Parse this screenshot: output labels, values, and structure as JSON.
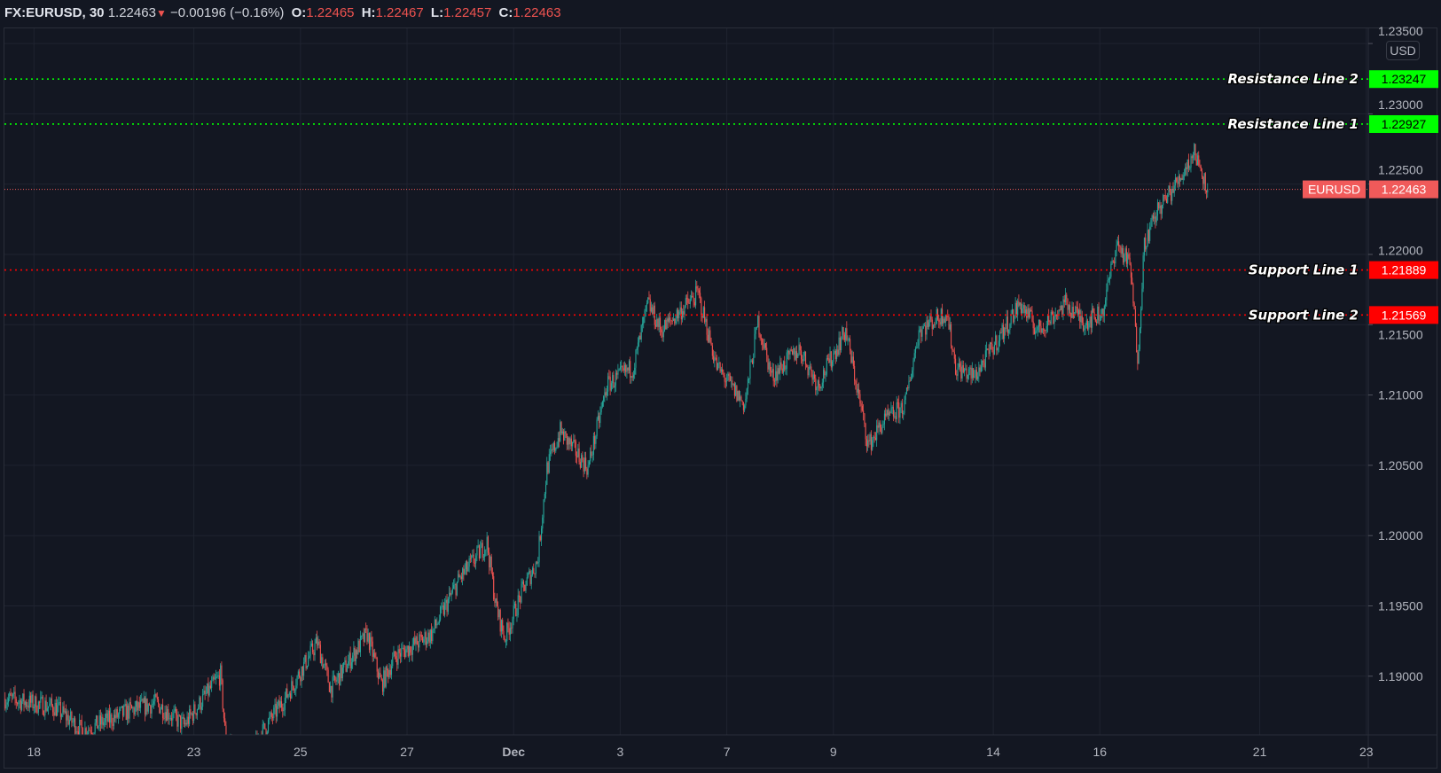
{
  "header": {
    "symbol": "FX:EURUSD, 30",
    "last": "1.22463",
    "change": "−0.00196 (−0.16%)",
    "o_label": "O:",
    "o": "1.22465",
    "h_label": "H:",
    "h": "1.22467",
    "l_label": "L:",
    "l": "1.22457",
    "c_label": "C:",
    "c": "1.22463",
    "direction_icon": "triangle-down-icon"
  },
  "currency_button": "USD",
  "colors": {
    "background": "#131722",
    "grid": "#1f2330",
    "up": "#26a69a",
    "down": "#ef5350",
    "resistance": "#00ff00",
    "support": "#ff0000",
    "last_price": "#f05a5a"
  },
  "chart_data": {
    "type": "candlestick",
    "symbol": "EURUSD",
    "interval": "30",
    "grid": true,
    "y_ticks": [
      "1.23500",
      "1.23000",
      "1.22500",
      "1.22000",
      "1.21500",
      "1.21000",
      "1.20500",
      "1.20000",
      "1.19500",
      "1.19000"
    ],
    "x_ticks": [
      {
        "label": "18",
        "date": "Nov 18"
      },
      {
        "label": "23",
        "date": "Nov 23"
      },
      {
        "label": "25",
        "date": "Nov 25"
      },
      {
        "label": "27",
        "date": "Nov 27"
      },
      {
        "label": "Dec",
        "date": "Dec 1"
      },
      {
        "label": "3",
        "date": "Dec 3"
      },
      {
        "label": "7",
        "date": "Dec 7"
      },
      {
        "label": "9",
        "date": "Dec 9"
      },
      {
        "label": "14",
        "date": "Dec 14"
      },
      {
        "label": "16",
        "date": "Dec 16"
      },
      {
        "label": "21",
        "date": "Dec 21"
      },
      {
        "label": "23",
        "date": "Dec 23"
      }
    ],
    "last_price": {
      "label": "EURUSD",
      "value": "1.22463"
    },
    "levels": [
      {
        "name": "Resistance Line 2",
        "value": "1.23247",
        "kind": "resistance"
      },
      {
        "name": "Resistance Line 1",
        "value": "1.22927",
        "kind": "resistance"
      },
      {
        "name": "Support Line 1",
        "value": "1.21889",
        "kind": "support"
      },
      {
        "name": "Support Line 2",
        "value": "1.21569",
        "kind": "support"
      }
    ],
    "price_path": [
      [
        "Nov 17 11:00",
        1.1884
      ],
      [
        "Nov 18 09:30",
        1.1878
      ],
      [
        "Nov 18 22:00",
        1.1861
      ],
      [
        "Nov 19 18:30",
        1.1875
      ],
      [
        "Nov 20 07:00",
        1.1881
      ],
      [
        "Nov 20 19:30",
        1.1865
      ],
      [
        "Nov 23 12:00",
        1.1901
      ],
      [
        "Nov 23 14:00",
        1.1861
      ],
      [
        "Nov 23 22:00",
        1.1835
      ],
      [
        "Nov 24 08:40",
        1.1865
      ],
      [
        "Nov 24 17:00",
        1.1884
      ],
      [
        "Nov 25 07:30",
        1.1924
      ],
      [
        "Nov 25 13:40",
        1.1891
      ],
      [
        "Nov 26 06:00",
        1.193
      ],
      [
        "Nov 26 12:30",
        1.1894
      ],
      [
        "Nov 26 18:30",
        1.1914
      ],
      [
        "Nov 27 11:00",
        1.193
      ],
      [
        "Nov 27 23:30",
        1.1969
      ],
      [
        "Nov 30 12:00",
        1.1995
      ],
      [
        "Nov 30 16:00",
        1.195
      ],
      [
        "Nov 30 20:00",
        1.1927
      ],
      [
        "Dec 1 04:30",
        1.1963
      ],
      [
        "Dec 1 10:45",
        1.1982
      ],
      [
        "Dec 1 15:00",
        1.2048
      ],
      [
        "Dec 1 21:00",
        1.2074
      ],
      [
        "Dec 2 09:30",
        1.2048
      ],
      [
        "Dec 2 18:00",
        1.2107
      ],
      [
        "Dec 3 06:00",
        1.212
      ],
      [
        "Dec 3 12:30",
        1.2165
      ],
      [
        "Dec 3 18:30",
        1.2146
      ],
      [
        "Dec 4 11:00",
        1.2172
      ],
      [
        "Dec 4 19:30",
        1.212
      ],
      [
        "Dec 7 08:00",
        1.2093
      ],
      [
        "Dec 7 14:00",
        1.2152
      ],
      [
        "Dec 7 20:15",
        1.2113
      ],
      [
        "Dec 8 08:40",
        1.2133
      ],
      [
        "Dec 8 17:00",
        1.2107
      ],
      [
        "Dec 9 05:30",
        1.2146
      ],
      [
        "Dec 9 15:45",
        1.2064
      ],
      [
        "Dec 9 22:00",
        1.208
      ],
      [
        "Dec 10 08:15",
        1.2093
      ],
      [
        "Dec 10 14:30",
        1.2146
      ],
      [
        "Dec 11 03:00",
        1.2159
      ],
      [
        "Dec 11 07:00",
        1.212
      ],
      [
        "Dec 11 15:20",
        1.2113
      ],
      [
        "Dec 11 23:30",
        1.2133
      ],
      [
        "Dec 14 12:00",
        1.2165
      ],
      [
        "Dec 14 20:00",
        1.2146
      ],
      [
        "Dec 15 08:40",
        1.2165
      ],
      [
        "Dec 15 17:00",
        1.2152
      ],
      [
        "Dec 16 01:15",
        1.2159
      ],
      [
        "Dec 16 07:30",
        1.2208
      ],
      [
        "Dec 16 13:40",
        1.2192
      ],
      [
        "Dec 16 17:00",
        1.2126
      ],
      [
        "Dec 16 20:00",
        1.2208
      ],
      [
        "Dec 17 02:00",
        1.2231
      ],
      [
        "Dec 17 10:20",
        1.225
      ],
      [
        "Dec 17 18:40",
        1.2273
      ],
      [
        "Dec 18 00:45",
        1.22463
      ]
    ]
  }
}
